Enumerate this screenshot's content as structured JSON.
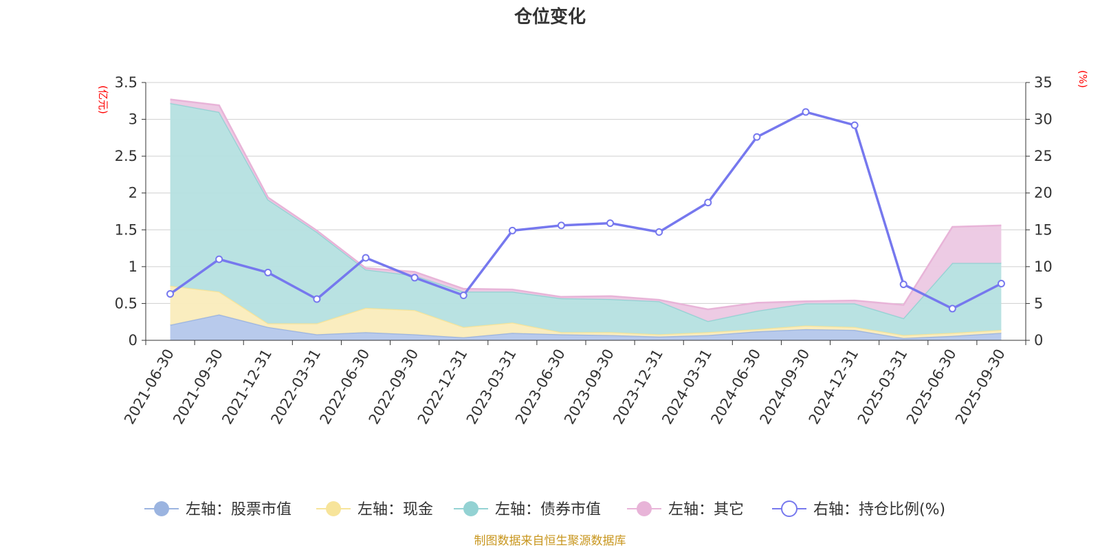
{
  "chart_data": {
    "type": "area",
    "title": "仓位变化",
    "left_axis": {
      "unit": "(亿元)",
      "ylim": [
        0,
        3.5
      ],
      "ticks": [
        "0",
        "0.5",
        "1",
        "1.5",
        "2",
        "2.5",
        "3",
        "3.5"
      ]
    },
    "right_axis": {
      "unit": "(%)",
      "ylim": [
        0,
        35
      ],
      "ticks": [
        "0",
        "5",
        "10",
        "15",
        "20",
        "25",
        "30",
        "35"
      ]
    },
    "categories": [
      "2021-06-30",
      "2021-09-30",
      "2021-12-31",
      "2022-03-31",
      "2022-06-30",
      "2022-09-30",
      "2022-12-31",
      "2023-03-31",
      "2023-06-30",
      "2023-09-30",
      "2023-12-31",
      "2024-03-31",
      "2024-06-30",
      "2024-09-30",
      "2024-12-31",
      "2025-03-31",
      "2025-06-30",
      "2025-09-30"
    ],
    "series": [
      {
        "name": "左轴：股票市值",
        "axis": "left",
        "kind": "stacked-area",
        "color": "#9bb4e0",
        "fill": "#b4c7eb",
        "values": [
          0.21,
          0.35,
          0.18,
          0.08,
          0.11,
          0.08,
          0.04,
          0.1,
          0.08,
          0.07,
          0.05,
          0.07,
          0.12,
          0.15,
          0.14,
          0.03,
          0.06,
          0.1
        ]
      },
      {
        "name": "左轴：现金",
        "axis": "left",
        "kind": "stacked-area",
        "color": "#f7e49a",
        "fill": "#faecbc",
        "values": [
          0.53,
          0.31,
          0.05,
          0.15,
          0.33,
          0.33,
          0.14,
          0.14,
          0.03,
          0.04,
          0.03,
          0.04,
          0.03,
          0.05,
          0.04,
          0.04,
          0.04,
          0.04
        ]
      },
      {
        "name": "左轴：债券市值",
        "axis": "left",
        "kind": "stacked-area",
        "color": "#93d2d3",
        "fill": "#b5e0e0",
        "values": [
          2.48,
          2.44,
          1.68,
          1.24,
          0.52,
          0.47,
          0.48,
          0.42,
          0.46,
          0.45,
          0.45,
          0.15,
          0.25,
          0.3,
          0.32,
          0.23,
          0.95,
          0.91
        ]
      },
      {
        "name": "左轴：其它",
        "axis": "left",
        "kind": "stacked-area",
        "color": "#e8b4d8",
        "fill": "#ecc8e3",
        "values": [
          0.05,
          0.09,
          0.03,
          0.02,
          0.02,
          0.05,
          0.04,
          0.03,
          0.02,
          0.04,
          0.02,
          0.16,
          0.11,
          0.03,
          0.04,
          0.18,
          0.49,
          0.51
        ]
      },
      {
        "name": "右轴：持仓比例(%)",
        "axis": "right",
        "kind": "line",
        "color": "#7678ee",
        "values": [
          6.3,
          11.0,
          9.2,
          5.6,
          11.2,
          8.5,
          6.1,
          14.9,
          15.6,
          15.9,
          14.7,
          18.7,
          27.6,
          31.0,
          29.2,
          7.6,
          4.3,
          7.7
        ]
      }
    ]
  },
  "footer": {
    "source": "制图数据来自恒生聚源数据库"
  }
}
